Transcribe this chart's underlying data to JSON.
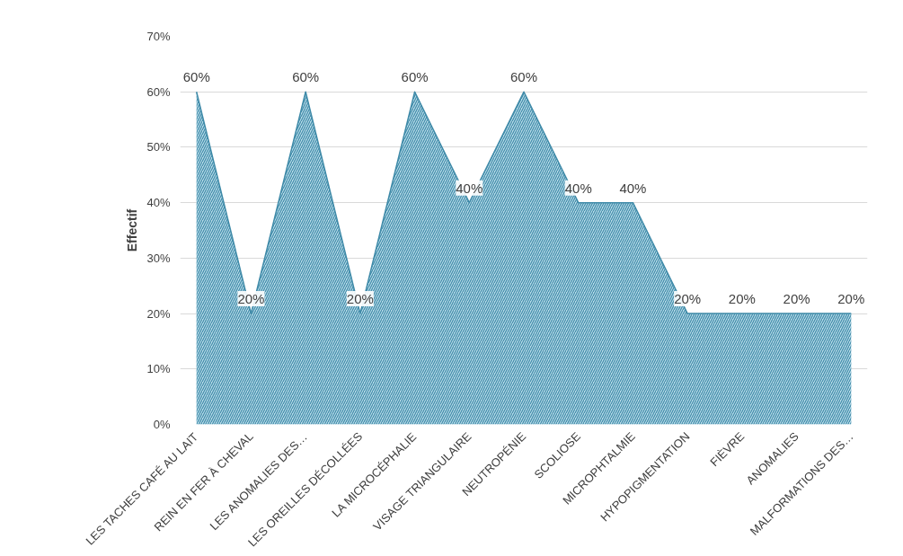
{
  "chart_data": {
    "type": "area",
    "ylabel": "Effectif",
    "categories": [
      "LES TACHES CAFÉ AU LAIT",
      "REIN EN FER À CHEVAL",
      "LES ANOMALIES DES…",
      "LES OREILLES DÉCOLLÉES",
      "LA MICROCÉPHALIE",
      "VISAGE TRIANGULAIRE",
      "NEUTROPÉNIE",
      "SCOLIOSE",
      "MICROPHTALMIE",
      "HYPOPIGMENTATION",
      "FIÈVRE",
      "ANOMALIES",
      "MALFORMATIONS DES…"
    ],
    "values": [
      60,
      20,
      60,
      20,
      60,
      40,
      60,
      40,
      40,
      20,
      20,
      20,
      20
    ],
    "value_labels": [
      "60%",
      "20%",
      "60%",
      "20%",
      "60%",
      "40%",
      "60%",
      "40%",
      "40%",
      "20%",
      "20%",
      "20%",
      "20%"
    ],
    "color": "#3f8aa8",
    "ylim": [
      0,
      70
    ],
    "yticks": [
      {
        "value": 0,
        "label": "0%"
      },
      {
        "value": 10,
        "label": "10%"
      },
      {
        "value": 20,
        "label": "20%"
      },
      {
        "value": 30,
        "label": "30%"
      },
      {
        "value": 40,
        "label": "40%"
      },
      {
        "value": 50,
        "label": "50%"
      },
      {
        "value": 60,
        "label": "60%"
      },
      {
        "value": 70,
        "label": "70%"
      }
    ],
    "grid": "y"
  }
}
